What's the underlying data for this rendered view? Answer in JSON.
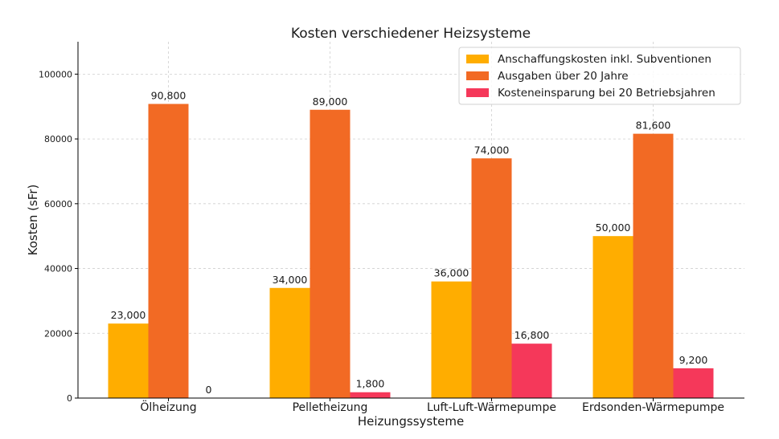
{
  "chart_data": {
    "type": "bar",
    "title": "Kosten verschiedener Heizsysteme",
    "xlabel": "Heizungssysteme",
    "ylabel": "Kosten (sFr)",
    "categories": [
      "Ölheizung",
      "Pelletheizung",
      "Luft-Luft-Wärmepumpe",
      "Erdsonden-Wärmepumpe"
    ],
    "series": [
      {
        "name": "Anschaffungskosten inkl. Subventionen",
        "color": "#ffad00",
        "values": [
          23000,
          34000,
          36000,
          50000
        ],
        "labels": [
          "23,000",
          "34,000",
          "36,000",
          "50,000"
        ]
      },
      {
        "name": "Ausgaben über 20 Jahre",
        "color": "#f26a24",
        "values": [
          90800,
          89000,
          74000,
          81600
        ],
        "labels": [
          "90,800",
          "89,000",
          "74,000",
          "81,600"
        ]
      },
      {
        "name": "Kosteneinsparung bei 20 Betriebsjahren",
        "color": "#f5385a",
        "values": [
          0,
          1800,
          16800,
          9200
        ],
        "labels": [
          "0",
          "1,800",
          "16,800",
          "9,200"
        ]
      }
    ],
    "ylim": [
      0,
      110000
    ],
    "yticks": [
      0,
      20000,
      40000,
      60000,
      80000,
      100000
    ],
    "ytick_labels": [
      "0",
      "20000",
      "40000",
      "60000",
      "80000",
      "100000"
    ],
    "grid": true,
    "legend_position": "top-right"
  }
}
